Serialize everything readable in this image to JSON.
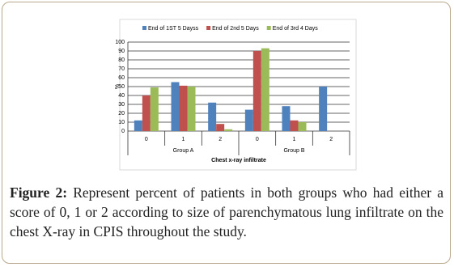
{
  "chart_data": {
    "type": "bar",
    "x_label": "Chest x-ray infiltrate",
    "y_label": "%",
    "groups": [
      {
        "name": "Group A",
        "categories": [
          "0",
          "1",
          "2"
        ]
      },
      {
        "name": "Group  B",
        "categories": [
          "0",
          "1",
          "2"
        ]
      }
    ],
    "series": [
      {
        "name": "End of 1ST 5 Dayss",
        "color": "#4f81bd",
        "values": [
          12,
          55,
          32,
          24,
          28,
          50
        ]
      },
      {
        "name": "End of 2nd 5 Days",
        "color": "#c0504d",
        "values": [
          40,
          51,
          8,
          90,
          12,
          0
        ]
      },
      {
        "name": "End of 3rd 4 Days",
        "color": "#9bbb59",
        "values": [
          49,
          50,
          2,
          93,
          10,
          0
        ]
      }
    ],
    "ylim": [
      0,
      100
    ],
    "yticks": [
      0,
      10,
      20,
      30,
      40,
      50,
      60,
      70,
      80,
      90,
      100
    ],
    "grid": true,
    "legend": "top"
  },
  "caption": {
    "label": "Figure 2:",
    "text": "Represent percent of patients in both groups who had either a score of 0, 1 or 2 according to size of parenchymatous lung infiltrate on the chest X-ray in CPIS throughout the study."
  }
}
